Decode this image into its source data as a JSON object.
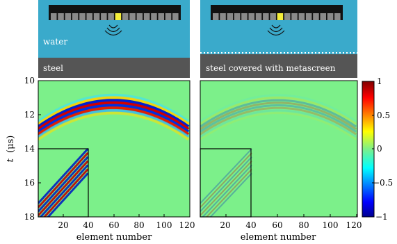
{
  "figure": {
    "panel_labels": {
      "left_top_water": "water",
      "left_bottom_medium": "steel",
      "right_bottom_medium": "steel covered with metascreen"
    },
    "y_axis_label_italic": "t",
    "y_axis_label_unit": "(μs)",
    "x_axis_label": "element number",
    "y_ticks": [
      "10",
      "12",
      "14",
      "16",
      "18"
    ],
    "x_ticks": [
      "20",
      "40",
      "60",
      "80",
      "100",
      "120"
    ],
    "colorbar_ticks": [
      "1",
      "0.5",
      "0",
      "−0.5",
      "−1"
    ],
    "colors": {
      "water": "#3aaacb",
      "steel": "#555555",
      "probe": "#111111",
      "element": "#8a8a8a",
      "active_element": "#f5ee3a",
      "field_background": "#7cf08a"
    }
  },
  "chart_data": [
    {
      "type": "heatmap",
      "title": "",
      "xlabel": "element number",
      "ylabel": "t (μs)",
      "xlim": [
        1,
        120
      ],
      "ylim": [
        10,
        18
      ],
      "y_inverted": true,
      "x_ticks": [
        20,
        40,
        60,
        80,
        100,
        120
      ],
      "y_ticks": [
        10,
        12,
        14,
        16,
        18
      ],
      "color_range": [
        -1,
        1
      ],
      "arc_apex_time_us": 11.3,
      "arc_apex_element": 60,
      "wave_amplitude": 1.0,
      "inset_box": {
        "element_range": [
          1,
          40
        ],
        "time_range": [
          14,
          18
        ]
      }
    },
    {
      "type": "heatmap",
      "title": "",
      "xlabel": "element number",
      "ylabel": "",
      "xlim": [
        1,
        120
      ],
      "ylim": [
        10,
        18
      ],
      "y_inverted": true,
      "x_ticks": [
        20,
        40,
        60,
        80,
        100,
        120
      ],
      "y_ticks": [],
      "color_range": [
        -1,
        1
      ],
      "arc_apex_time_us": 11.3,
      "arc_apex_element": 60,
      "wave_amplitude": 0.25,
      "inset_box": {
        "element_range": [
          1,
          40
        ],
        "time_range": [
          14,
          18
        ]
      }
    },
    {
      "type": "heatmap",
      "title": "",
      "colorbar": true,
      "ticks": [
        1,
        0.5,
        0,
        -0.5,
        -1
      ],
      "range": [
        -1,
        1
      ],
      "colormap": "jet"
    }
  ]
}
